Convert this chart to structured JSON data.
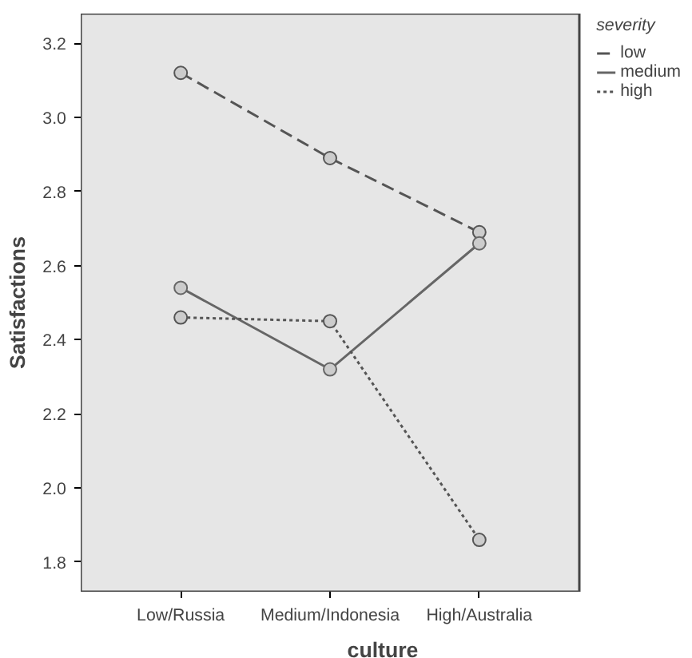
{
  "chart_data": {
    "type": "line",
    "xlabel": "culture",
    "ylabel": "Satisfactions",
    "legend_title": "severity",
    "categories": [
      "Low/Russia",
      "Medium/Indonesia",
      "High/Australia"
    ],
    "series": [
      {
        "name": "low",
        "color": "#555555",
        "line_style": "dashed",
        "values": [
          3.12,
          2.89,
          2.69
        ]
      },
      {
        "name": "medium",
        "color": "#666666",
        "line_style": "solid",
        "values": [
          2.54,
          2.32,
          2.66
        ]
      },
      {
        "name": "high",
        "color": "#555555",
        "line_style": "dotted",
        "values": [
          2.46,
          2.45,
          1.86
        ]
      }
    ],
    "ylim": [
      1.72,
      3.28
    ],
    "yticks": [
      {
        "value": 1.8,
        "label": "1.8"
      },
      {
        "value": 2.0,
        "label": "2.0"
      },
      {
        "value": 2.2,
        "label": "2.2"
      },
      {
        "value": 2.4,
        "label": "2.4"
      },
      {
        "value": 2.6,
        "label": "2.6"
      },
      {
        "value": 2.8,
        "label": "2.8"
      },
      {
        "value": 3.0,
        "label": "3.0"
      },
      {
        "value": 3.2,
        "label": "3.2"
      }
    ],
    "marker": "circle",
    "grid": false,
    "legend": "top right"
  }
}
